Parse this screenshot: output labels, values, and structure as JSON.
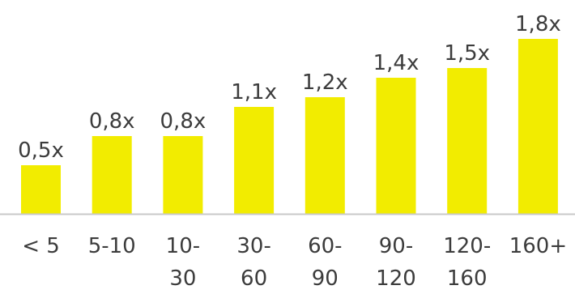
{
  "chart_data": {
    "type": "bar",
    "categories": [
      "< 5",
      "5-10",
      "10-30",
      "30-60",
      "60-90",
      "90-120",
      "120-160",
      "160+"
    ],
    "category_lines": [
      [
        "< 5"
      ],
      [
        "5-10"
      ],
      [
        "10-",
        "30"
      ],
      [
        "30-",
        "60"
      ],
      [
        "60-",
        "90"
      ],
      [
        "90-",
        "120"
      ],
      [
        "120-",
        "160"
      ],
      [
        "160+"
      ]
    ],
    "values": [
      0.5,
      0.8,
      0.8,
      1.1,
      1.2,
      1.4,
      1.5,
      1.8
    ],
    "data_labels": [
      "0,5x",
      "0,8x",
      "0,8x",
      "1,1x",
      "1,2x",
      "1,4x",
      "1,5x",
      "1,8x"
    ],
    "title": "",
    "xlabel": "",
    "ylabel": "",
    "ylim": [
      0,
      2.0
    ],
    "grid": false,
    "legend": "none",
    "colors": {
      "bar": "#F2EC00",
      "axis": "#C8C8C8",
      "text": "#3C3C3C"
    }
  }
}
